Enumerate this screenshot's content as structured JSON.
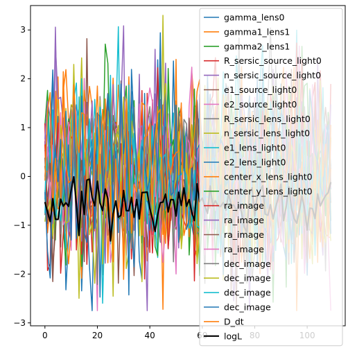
{
  "chart_data": {
    "type": "line",
    "title": "",
    "xlabel": "",
    "ylabel": "",
    "xlim": [
      -5.5,
      114.5
    ],
    "ylim": [
      -3.06,
      3.5
    ],
    "x_ticks": [
      "0",
      "20",
      "40",
      "60",
      "80",
      "100"
    ],
    "y_ticks": [
      "-3",
      "-2",
      "-1",
      "0",
      "1",
      "2",
      "3"
    ],
    "n_points": 110,
    "legend_position": "upper right",
    "grid": false,
    "series": [
      {
        "name": "gamma_lens0",
        "color": "#1f77b4",
        "center": 0.0,
        "amp": 1.0,
        "seed": 11
      },
      {
        "name": "gamma1_lens1",
        "color": "#ff7f0e",
        "center": 0.0,
        "amp": 1.0,
        "seed": 12
      },
      {
        "name": "gamma2_lens1",
        "color": "#2ca02c",
        "center": 0.0,
        "amp": 1.0,
        "seed": 13
      },
      {
        "name": "R_sersic_source_light0",
        "color": "#d62728",
        "center": 0.0,
        "amp": 1.0,
        "seed": 14
      },
      {
        "name": "n_sersic_source_light0",
        "color": "#9467bd",
        "center": 0.0,
        "amp": 1.0,
        "seed": 15
      },
      {
        "name": "e1_source_light0",
        "color": "#8c564b",
        "center": 0.0,
        "amp": 1.0,
        "seed": 16
      },
      {
        "name": "e2_source_light0",
        "color": "#e377c2",
        "center": 0.0,
        "amp": 1.0,
        "seed": 17
      },
      {
        "name": "R_sersic_lens_light0",
        "color": "#7f7f7f",
        "center": 0.0,
        "amp": 1.0,
        "seed": 18
      },
      {
        "name": "n_sersic_lens_light0",
        "color": "#bcbd22",
        "center": 0.0,
        "amp": 1.0,
        "seed": 19
      },
      {
        "name": "e1_lens_light0",
        "color": "#17becf",
        "center": 0.0,
        "amp": 1.0,
        "seed": 20
      },
      {
        "name": "e2_lens_light0",
        "color": "#1f77b4",
        "center": 0.0,
        "amp": 1.0,
        "seed": 21
      },
      {
        "name": "center_x_lens_light0",
        "color": "#ff7f0e",
        "center": 0.0,
        "amp": 1.0,
        "seed": 22
      },
      {
        "name": "center_y_lens_light0",
        "color": "#2ca02c",
        "center": 0.0,
        "amp": 1.0,
        "seed": 23
      },
      {
        "name": "ra_image",
        "color": "#d62728",
        "center": 0.0,
        "amp": 1.0,
        "seed": 24
      },
      {
        "name": "ra_image",
        "color": "#9467bd",
        "center": 0.0,
        "amp": 1.0,
        "seed": 25
      },
      {
        "name": "ra_image",
        "color": "#8c564b",
        "center": 0.0,
        "amp": 1.0,
        "seed": 26
      },
      {
        "name": "ra_image",
        "color": "#e377c2",
        "center": 0.0,
        "amp": 1.0,
        "seed": 27
      },
      {
        "name": "dec_image",
        "color": "#7f7f7f",
        "center": 0.0,
        "amp": 1.0,
        "seed": 28
      },
      {
        "name": "dec_image",
        "color": "#bcbd22",
        "center": 0.0,
        "amp": 1.0,
        "seed": 29
      },
      {
        "name": "dec_image",
        "color": "#17becf",
        "center": 0.0,
        "amp": 1.0,
        "seed": 30
      },
      {
        "name": "dec_image",
        "color": "#1f77b4",
        "center": 0.0,
        "amp": 1.0,
        "seed": 31
      },
      {
        "name": "D_dt",
        "color": "#ff7f0e",
        "center": 0.0,
        "amp": 1.0,
        "seed": 32
      },
      {
        "name": "logL",
        "color": "#000000",
        "center": -0.55,
        "amp": 0.25,
        "seed": 33,
        "bold": true
      }
    ]
  }
}
